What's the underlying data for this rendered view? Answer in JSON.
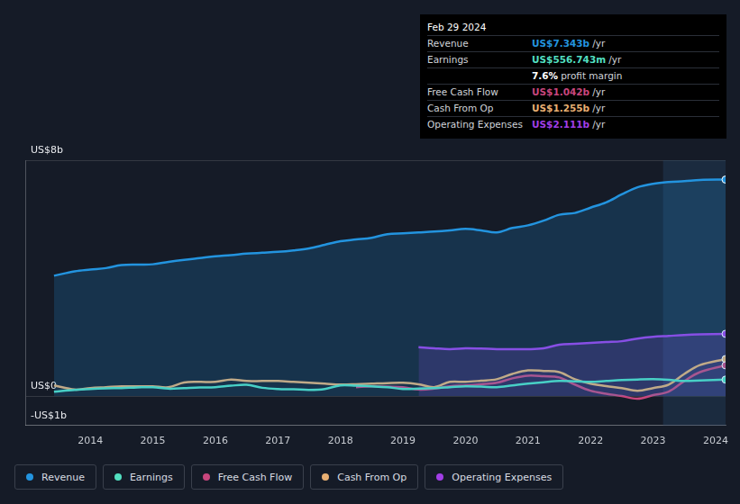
{
  "chart_data": {
    "type": "line",
    "x": [
      2013.42,
      2013.75,
      2014.0,
      2014.25,
      2014.5,
      2014.75,
      2015.0,
      2015.25,
      2015.5,
      2015.75,
      2016.0,
      2016.25,
      2016.5,
      2016.75,
      2017.0,
      2017.25,
      2017.5,
      2017.75,
      2018.0,
      2018.25,
      2018.5,
      2018.75,
      2019.0,
      2019.25,
      2019.5,
      2019.75,
      2020.0,
      2020.25,
      2020.5,
      2020.75,
      2021.0,
      2021.25,
      2021.5,
      2021.75,
      2022.0,
      2022.25,
      2022.5,
      2022.75,
      2023.0,
      2023.25,
      2023.5,
      2023.75,
      2024.16
    ],
    "xlim": [
      2012.96,
      2024.16
    ],
    "xticks": [
      2014,
      2015,
      2016,
      2017,
      2018,
      2019,
      2020,
      2021,
      2022,
      2023,
      2024
    ],
    "ylim": [
      -1,
      8
    ],
    "yticks": [
      {
        "value": -1,
        "label": "-US$1b"
      },
      {
        "value": 0,
        "label": "US$0"
      },
      {
        "value": 8,
        "label": "US$8b"
      }
    ],
    "grid": true,
    "legend": "bottom",
    "shaded_range": [
      2023.16,
      2024.16
    ],
    "series": [
      {
        "name": "Revenue",
        "color": "#2394df",
        "type": "area",
        "values": [
          4.08,
          4.23,
          4.29,
          4.34,
          4.44,
          4.46,
          4.47,
          4.55,
          4.62,
          4.68,
          4.74,
          4.78,
          4.83,
          4.86,
          4.89,
          4.94,
          5.01,
          5.13,
          5.25,
          5.31,
          5.37,
          5.49,
          5.52,
          5.55,
          5.58,
          5.62,
          5.67,
          5.62,
          5.55,
          5.7,
          5.79,
          5.95,
          6.15,
          6.21,
          6.39,
          6.57,
          6.84,
          7.08,
          7.2,
          7.26,
          7.29,
          7.33,
          7.343
        ]
      },
      {
        "name": "Earnings",
        "color": "#52dfc0",
        "type": "line",
        "values": [
          0.15,
          0.21,
          0.24,
          0.26,
          0.27,
          0.29,
          0.3,
          0.25,
          0.27,
          0.29,
          0.3,
          0.35,
          0.38,
          0.28,
          0.24,
          0.23,
          0.21,
          0.24,
          0.36,
          0.35,
          0.33,
          0.3,
          0.24,
          0.25,
          0.27,
          0.3,
          0.33,
          0.32,
          0.3,
          0.36,
          0.42,
          0.47,
          0.51,
          0.5,
          0.48,
          0.51,
          0.54,
          0.56,
          0.57,
          0.55,
          0.51,
          0.53,
          0.557
        ]
      },
      {
        "name": "Free Cash Flow",
        "color": "#c8467d",
        "type": "line",
        "values": [
          null,
          null,
          null,
          null,
          null,
          null,
          null,
          null,
          null,
          null,
          null,
          null,
          null,
          null,
          null,
          null,
          null,
          null,
          null,
          0.3,
          0.33,
          0.32,
          0.3,
          0.22,
          0.25,
          0.33,
          0.36,
          0.4,
          0.45,
          0.6,
          0.69,
          0.67,
          0.63,
          0.39,
          0.18,
          0.08,
          0.0,
          -0.09,
          0.03,
          0.15,
          0.51,
          0.81,
          1.042
        ]
      },
      {
        "name": "Cash From Op",
        "color": "#e8af72",
        "type": "line",
        "values": [
          0.36,
          0.22,
          0.27,
          0.3,
          0.33,
          0.33,
          0.33,
          0.3,
          0.46,
          0.48,
          0.48,
          0.56,
          0.51,
          0.51,
          0.51,
          0.48,
          0.45,
          0.42,
          0.39,
          0.4,
          0.42,
          0.44,
          0.45,
          0.4,
          0.3,
          0.48,
          0.48,
          0.52,
          0.57,
          0.75,
          0.87,
          0.85,
          0.81,
          0.57,
          0.42,
          0.34,
          0.27,
          0.18,
          0.27,
          0.39,
          0.75,
          1.05,
          1.255
        ]
      },
      {
        "name": "Operating Expenses",
        "color": "#a13ee6",
        "type": "area",
        "values": [
          null,
          null,
          null,
          null,
          null,
          null,
          null,
          null,
          null,
          null,
          null,
          null,
          null,
          null,
          null,
          null,
          null,
          null,
          null,
          null,
          null,
          null,
          null,
          1.66,
          1.62,
          1.59,
          1.62,
          1.61,
          1.59,
          1.59,
          1.59,
          1.62,
          1.74,
          1.77,
          1.8,
          1.83,
          1.86,
          1.95,
          2.01,
          2.04,
          2.07,
          2.09,
          2.111
        ]
      }
    ],
    "info_box": {
      "date": "Feb 29 2024",
      "rows": [
        {
          "label": "Revenue",
          "value": "US$7.343b",
          "unit": "/yr",
          "series": "Revenue"
        },
        {
          "label": "Earnings",
          "value": "US$556.743m",
          "unit": "/yr",
          "series": "Earnings"
        },
        {
          "label": null,
          "value": "7.6%",
          "unit": "profit margin",
          "series": null
        },
        {
          "label": "Free Cash Flow",
          "value": "US$1.042b",
          "unit": "/yr",
          "series": "Free Cash Flow"
        },
        {
          "label": "Cash From Op",
          "value": "US$1.255b",
          "unit": "/yr",
          "series": "Cash From Op"
        },
        {
          "label": "Operating Expenses",
          "value": "US$2.111b",
          "unit": "/yr",
          "series": "Operating Expenses"
        }
      ]
    }
  }
}
